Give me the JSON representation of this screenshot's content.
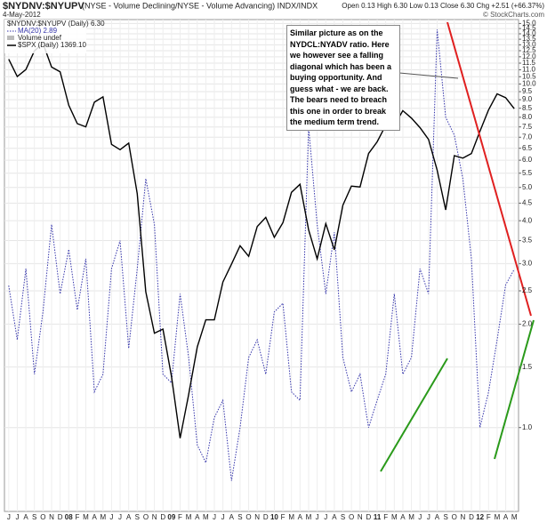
{
  "chart_data": {
    "type": "line",
    "title": "$NYDNV:$NYUPV",
    "subtitle": "(NYSE - Volume Declining/NYSE - Volume Advancing) INDX/INDX",
    "date": "4-May-2012",
    "quote": "Open 0.13  High 6.30  Low 0.13  Close 6.30  Chg +2.51 (+66.37%)",
    "credit": "© StockCharts.com",
    "legend_header": "$NYDNV:$NYUPV (Daily) 6.30",
    "legend_volume": "Volume undef",
    "annotation": "Similar picture as on the NYDCL:NYADV ratio. Here we however see a falling diagonal which has been a buying opportunity. And guess what - we are back. The bears need to breach this one in order to break the medium term trend.",
    "categories": [
      "J",
      "J",
      "A",
      "S",
      "O",
      "N",
      "D",
      "08",
      "F",
      "M",
      "A",
      "M",
      "J",
      "J",
      "A",
      "S",
      "O",
      "N",
      "D",
      "09",
      "F",
      "M",
      "A",
      "M",
      "J",
      "J",
      "A",
      "S",
      "O",
      "N",
      "D",
      "10",
      "F",
      "M",
      "A",
      "M",
      "J",
      "J",
      "A",
      "S",
      "O",
      "N",
      "D",
      "11",
      "F",
      "M",
      "A",
      "M",
      "J",
      "J",
      "A",
      "S",
      "O",
      "N",
      "D",
      "12",
      "F",
      "M",
      "A",
      "M"
    ],
    "log_scale": true,
    "grid": true,
    "ylim": [
      0.57,
      15.4
    ],
    "yticks": [
      {
        "value": 1,
        "label": "1.0"
      },
      1.5,
      {
        "value": 2,
        "label": "2.0"
      },
      2.5,
      {
        "value": 3,
        "label": "3.0"
      },
      3.5,
      {
        "value": 4,
        "label": "4.0"
      },
      4.5,
      {
        "value": 5,
        "label": "5.0"
      },
      5.5,
      {
        "value": 6,
        "label": "6.0"
      },
      6.5,
      {
        "value": 7,
        "label": "7.0"
      },
      7.5,
      {
        "value": 8,
        "label": "8.0"
      },
      8.5,
      {
        "value": 9,
        "label": "9.0"
      },
      9.5,
      {
        "value": 10,
        "label": "10.0"
      },
      10.5,
      {
        "value": 11,
        "label": "11.0"
      },
      11.5,
      {
        "value": 12,
        "label": "12.0"
      },
      12.5,
      {
        "value": 13,
        "label": "13.0"
      },
      13.5,
      {
        "value": 14,
        "label": "14.0"
      },
      14.5,
      {
        "value": 15,
        "label": "15.0"
      }
    ],
    "y2lim": [
      640,
      1620
    ],
    "series": [
      {
        "name": "MA(20) 2.89",
        "color": "#3333aa",
        "values": [
          2.59,
          1.8,
          2.9,
          1.43,
          2.17,
          3.9,
          2.45,
          3.3,
          2.2,
          3.1,
          1.27,
          1.43,
          2.9,
          3.5,
          1.7,
          2.9,
          5.3,
          3.9,
          1.43,
          1.35,
          2.45,
          1.6,
          0.89,
          0.79,
          1.07,
          1.2,
          0.7,
          1.0,
          1.6,
          1.8,
          1.43,
          2.17,
          2.3,
          1.27,
          1.2,
          7.5,
          3.9,
          2.45,
          3.7,
          1.6,
          1.27,
          1.43,
          1.0,
          1.2,
          1.43,
          2.45,
          1.43,
          1.6,
          2.9,
          2.45,
          14.4,
          8.0,
          7.1,
          5.3,
          3.1,
          1.0,
          1.27,
          1.8,
          2.6,
          2.89
        ]
      },
      {
        "name": "$SPX (Daily) 1369.10",
        "color": "#000000",
        "axis": "y2",
        "values": [
          1503,
          1455,
          1474,
          1527,
          1549,
          1481,
          1468,
          1378,
          1331,
          1323,
          1386,
          1400,
          1280,
          1267,
          1283,
          1166,
          969,
          896,
          903,
          826,
          735,
          798,
          873,
          919,
          919,
          987,
          1021,
          1057,
          1036,
          1096,
          1115,
          1074,
          1104,
          1169,
          1187,
          1089,
          1031,
          1102,
          1049,
          1141,
          1183,
          1181,
          1258,
          1286,
          1327,
          1326,
          1364,
          1345,
          1321,
          1292,
          1219,
          1131,
          1253,
          1247,
          1258,
          1312,
          1366,
          1408,
          1398,
          1369.1
        ]
      }
    ]
  }
}
